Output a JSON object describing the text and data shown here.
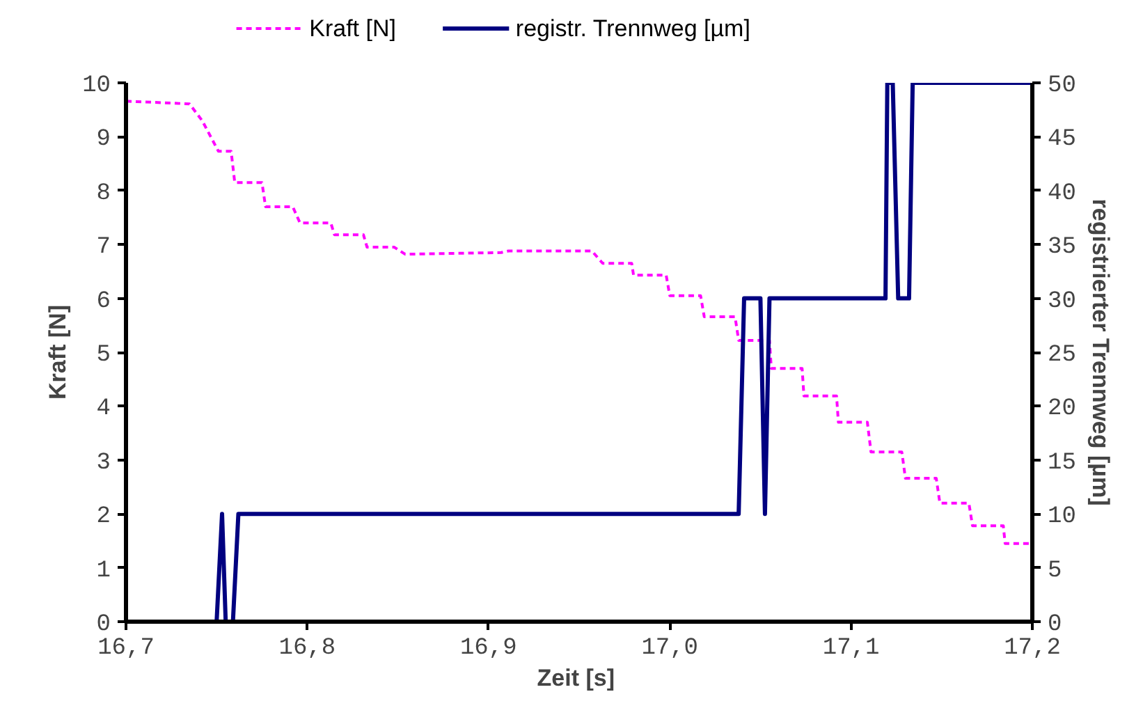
{
  "chart_data": {
    "type": "line",
    "xlabel": "Zeit  [s]",
    "ylabel": "Kraft [N]",
    "y2label": "registrierter Trennweg [µm]",
    "xlim": [
      16.7,
      17.2
    ],
    "xticks": [
      {
        "value": 16.7,
        "label": "16,7"
      },
      {
        "value": 16.8,
        "label": "16,8"
      },
      {
        "value": 16.9,
        "label": "16,9"
      },
      {
        "value": 17.0,
        "label": "17,0"
      },
      {
        "value": 17.1,
        "label": "17,1"
      },
      {
        "value": 17.2,
        "label": "17,2"
      }
    ],
    "ylim": [
      0,
      10
    ],
    "yticks": [
      0,
      1,
      2,
      3,
      4,
      5,
      6,
      7,
      8,
      9,
      10
    ],
    "y2lim": [
      0,
      50
    ],
    "y2ticks": [
      0,
      5,
      10,
      15,
      20,
      25,
      30,
      35,
      40,
      45,
      50
    ],
    "grid": false,
    "legend": "top",
    "series": [
      {
        "name": "Kraft [N]",
        "color": "#ff00ff",
        "line_style": "dashed",
        "x": [
          16.7,
          16.735,
          16.742,
          16.751,
          16.758,
          16.76,
          16.775,
          16.777,
          16.792,
          16.796,
          16.813,
          16.815,
          16.831,
          16.833,
          16.848,
          16.854,
          16.907,
          16.911,
          16.957,
          16.963,
          16.979,
          16.98,
          16.998,
          17.0,
          17.017,
          17.019,
          17.036,
          17.038,
          17.055,
          17.056,
          17.073,
          17.074,
          17.092,
          17.093,
          17.109,
          17.111,
          17.128,
          17.13,
          17.147,
          17.149,
          17.165,
          17.167,
          17.184,
          17.185,
          17.2
        ],
        "values": [
          9.66,
          9.61,
          9.3,
          8.73,
          8.73,
          8.15,
          8.15,
          7.7,
          7.7,
          7.4,
          7.4,
          7.18,
          7.18,
          6.95,
          6.95,
          6.82,
          6.85,
          6.88,
          6.88,
          6.65,
          6.65,
          6.43,
          6.43,
          6.05,
          6.05,
          5.66,
          5.66,
          5.22,
          5.22,
          4.7,
          4.7,
          4.19,
          4.19,
          3.7,
          3.7,
          3.15,
          3.15,
          2.66,
          2.66,
          2.2,
          2.2,
          1.78,
          1.78,
          1.45,
          1.45
        ]
      },
      {
        "name": "registr. Trennweg [µm]",
        "color": "#000080",
        "line_style": "solid",
        "axis": "y2",
        "x": [
          16.7,
          16.75,
          16.753,
          16.755,
          16.759,
          16.762,
          17.038,
          17.041,
          17.05,
          17.0525,
          17.055,
          17.119,
          17.12,
          17.123,
          17.126,
          17.132,
          17.134,
          17.2
        ],
        "values": [
          0,
          0,
          10,
          0,
          0,
          10,
          10,
          30,
          30,
          10,
          30,
          30,
          50,
          50,
          30,
          30,
          50,
          50
        ]
      }
    ]
  }
}
